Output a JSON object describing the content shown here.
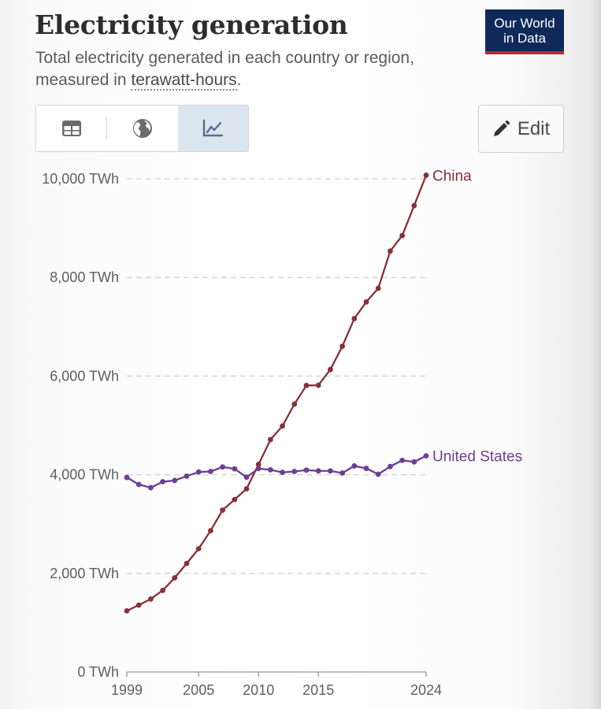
{
  "header": {
    "title": "Electricity generation",
    "subtitle_prefix": "Total electricity generated in each country or region, measured in ",
    "subtitle_term": "terawatt-hours",
    "subtitle_suffix": ".",
    "logo_line1": "Our World",
    "logo_line2": "in Data"
  },
  "toolbar": {
    "tabs": [
      {
        "name": "table",
        "icon": "table-icon",
        "active": false
      },
      {
        "name": "map",
        "icon": "globe-icon",
        "active": false
      },
      {
        "name": "chart",
        "icon": "line-chart-icon",
        "active": true
      }
    ],
    "edit_label": "Edit",
    "edit_icon": "pencil-icon"
  },
  "chart_data": {
    "type": "line",
    "title": "",
    "xlabel": "",
    "ylabel": "",
    "x": [
      1999,
      2000,
      2001,
      2002,
      2003,
      2004,
      2005,
      2006,
      2007,
      2008,
      2009,
      2010,
      2011,
      2012,
      2013,
      2014,
      2015,
      2016,
      2017,
      2018,
      2019,
      2020,
      2021,
      2022,
      2023,
      2024
    ],
    "series": [
      {
        "name": "China",
        "color": "#883039",
        "values": [
          1240,
          1356,
          1480,
          1654,
          1910,
          2200,
          2500,
          2866,
          3282,
          3496,
          3714,
          4208,
          4713,
          4988,
          5432,
          5810,
          5815,
          6133,
          6604,
          7166,
          7503,
          7779,
          8534,
          8849,
          9456,
          10073
        ]
      },
      {
        "name": "United States",
        "color": "#6d3e91",
        "values": [
          3945,
          3802,
          3737,
          3858,
          3883,
          3971,
          4055,
          4065,
          4157,
          4119,
          3951,
          4125,
          4100,
          4048,
          4066,
          4094,
          4078,
          4077,
          4034,
          4178,
          4128,
          4010,
          4166,
          4291,
          4260,
          4383
        ]
      }
    ],
    "ylim": [
      0,
      10000
    ],
    "yticks": [
      0,
      2000,
      4000,
      6000,
      8000,
      10000
    ],
    "ytick_labels": [
      "0 TWh",
      "2,000 TWh",
      "4,000 TWh",
      "6,000 TWh",
      "8,000 TWh",
      "10,000 TWh"
    ],
    "xticks": [
      1999,
      2005,
      2010,
      2015,
      2024
    ],
    "xtick_labels": [
      "1999",
      "2005",
      "2010",
      "2015",
      "2024"
    ],
    "grid": "horizontal-dashed",
    "legend": "inline-end-labels"
  }
}
